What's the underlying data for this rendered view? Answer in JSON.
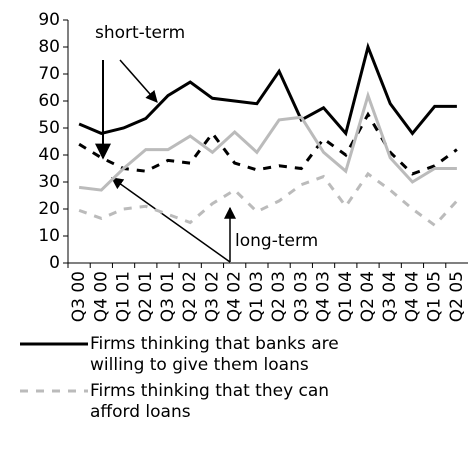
{
  "chart_data": {
    "type": "line",
    "categories": [
      "Q3 00",
      "Q4 00",
      "Q1 01",
      "Q2 01",
      "Q3 01",
      "Q2 02",
      "Q3 02",
      "Q4 02",
      "Q1 03",
      "Q2 03",
      "Q3 03",
      "Q4 03",
      "Q1 04",
      "Q2 04",
      "Q3 04",
      "Q4 04",
      "Q1 05",
      "Q2 05"
    ],
    "series": [
      {
        "name": "Firms thinking that banks are willing to give them loans",
        "color": "#000000",
        "dash": false,
        "values": [
          51.5,
          48,
          50,
          53.5,
          62,
          67,
          61,
          60,
          59,
          71,
          53,
          57.5,
          48,
          80,
          59,
          48,
          58,
          58
        ]
      },
      {
        "color": "#000000",
        "dash": true,
        "values": [
          44,
          39,
          35,
          34,
          38,
          37,
          48,
          37,
          34.5,
          36,
          35,
          46,
          40,
          55,
          41,
          33,
          36,
          42
        ]
      },
      {
        "color": "#bbbbbb",
        "dash": false,
        "values": [
          28,
          27,
          35,
          42,
          42,
          47,
          41,
          48.5,
          41,
          53,
          54,
          41,
          34,
          62,
          39,
          30,
          35,
          35
        ]
      },
      {
        "name": "Firms thinking that they can afford loans",
        "color": "#bbbbbb",
        "dash": true,
        "values": [
          19.5,
          16.5,
          20,
          21,
          18,
          15,
          22,
          27,
          19,
          23,
          29,
          32,
          21,
          33,
          27,
          20,
          14,
          23
        ]
      }
    ],
    "annotations": [
      "short-term",
      "long-term"
    ],
    "ylim": [
      0,
      90
    ],
    "yticks": [
      0,
      10,
      20,
      30,
      40,
      50,
      60,
      70,
      80,
      90
    ]
  }
}
